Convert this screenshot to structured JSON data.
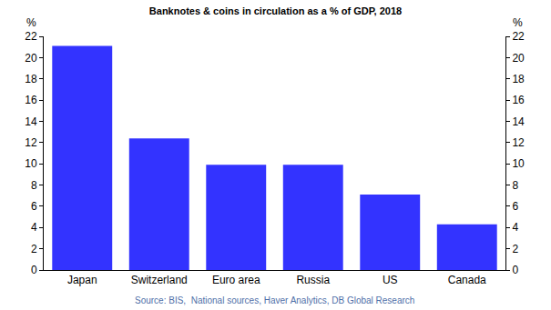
{
  "chart_data": {
    "type": "bar",
    "title": "Banknotes & coins in circulation as a % of GDP, 2018",
    "categories": [
      "Japan",
      "Switzerland",
      "Euro area",
      "Russia",
      "US",
      "Canada"
    ],
    "values": [
      21.1,
      12.4,
      9.9,
      9.9,
      7.1,
      4.3
    ],
    "color": "#3333ff",
    "ylabel": "%",
    "y2label": "%",
    "ylim": [
      0,
      22
    ],
    "yticks": [
      0,
      2,
      4,
      6,
      8,
      10,
      12,
      14,
      16,
      18,
      20,
      22
    ],
    "y2lim": [
      0,
      22
    ],
    "y2ticks": [
      0,
      2,
      4,
      6,
      8,
      10,
      12,
      14,
      16,
      18,
      20,
      22
    ],
    "source": "Source: BIS,  National sources, Haver Analytics, DB Global Research",
    "grid": false
  }
}
